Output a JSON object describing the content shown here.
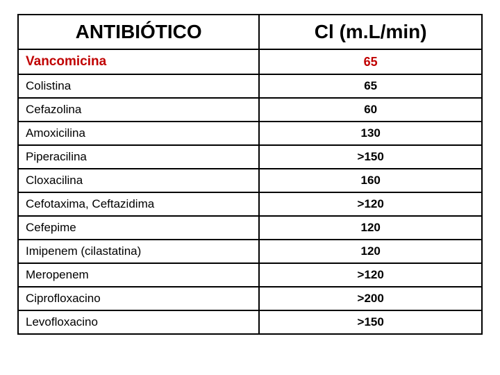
{
  "table": {
    "columns": [
      "ANTIBIÓTICO",
      "Cl (m.L/min)"
    ],
    "header_font": "Comic Sans MS",
    "header_fontsize": 28,
    "header_weight": "bold",
    "body_font": "Arial",
    "body_fontsize": 17,
    "border_color": "#000000",
    "border_width": 2,
    "col_widths_pct": [
      52,
      48
    ],
    "alignment": [
      "left",
      "center"
    ],
    "highlight_color": "#c00000",
    "rows": [
      {
        "name": "Vancomicina",
        "value": "65",
        "highlight": true
      },
      {
        "name": "Colistina",
        "value": "65",
        "highlight": false
      },
      {
        "name": "Cefazolina",
        "value": "60",
        "highlight": false
      },
      {
        "name": "Amoxicilina",
        "value": "130",
        "highlight": false
      },
      {
        "name": "Piperacilina",
        "value": ">150",
        "highlight": false
      },
      {
        "name": "Cloxacilina",
        "value": "160",
        "highlight": false
      },
      {
        "name": "Cefotaxima, Ceftazidima",
        "value": ">120",
        "highlight": false
      },
      {
        "name": "Cefepime",
        "value": "120",
        "highlight": false
      },
      {
        "name": "Imipenem (cilastatina)",
        "value": "120",
        "highlight": false
      },
      {
        "name": "Meropenem",
        "value": ">120",
        "highlight": false
      },
      {
        "name": "Ciprofloxacino",
        "value": ">200",
        "highlight": false
      },
      {
        "name": "Levofloxacino",
        "value": ">150",
        "highlight": false
      }
    ]
  }
}
